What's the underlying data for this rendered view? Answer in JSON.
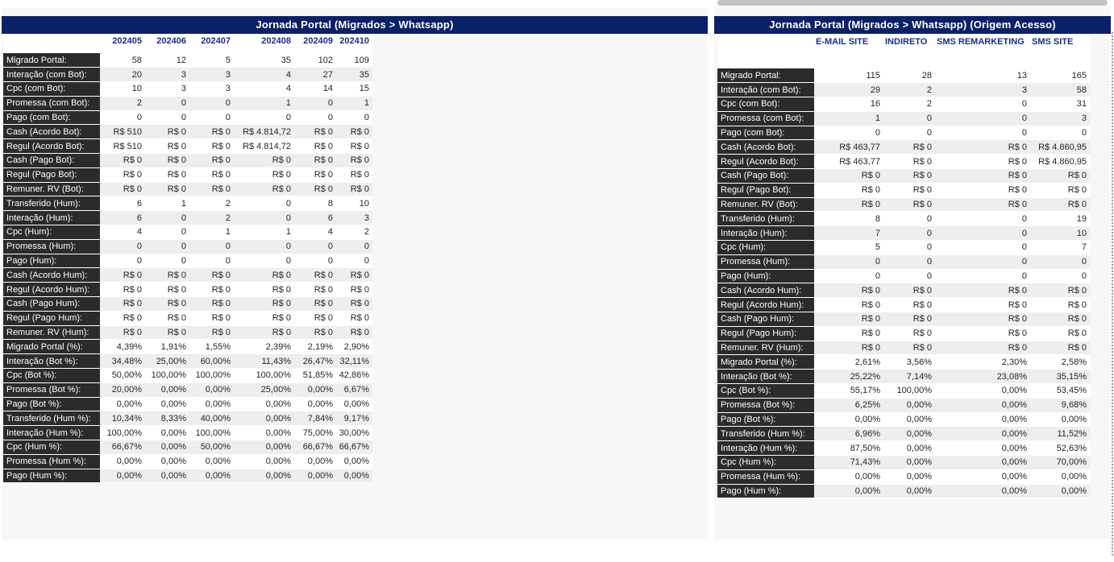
{
  "left": {
    "title": "Jornada Portal (Migrados > Whatsapp)",
    "columns": [
      "202405",
      "202406",
      "202407",
      "202408",
      "202409",
      "202410"
    ],
    "rows": [
      [
        "Migrado Portal:",
        "58",
        "12",
        "5",
        "35",
        "102",
        "109"
      ],
      [
        "Interação (com Bot):",
        "20",
        "3",
        "3",
        "4",
        "27",
        "35"
      ],
      [
        "Cpc (com Bot):",
        "10",
        "3",
        "3",
        "4",
        "14",
        "15"
      ],
      [
        "Promessa (com Bot):",
        "2",
        "0",
        "0",
        "1",
        "0",
        "1"
      ],
      [
        "Pago (com Bot):",
        "0",
        "0",
        "0",
        "0",
        "0",
        "0"
      ],
      [
        "Cash (Acordo Bot):",
        "R$ 510",
        "R$ 0",
        "R$ 0",
        "R$ 4.814,72",
        "R$ 0",
        "R$ 0"
      ],
      [
        "Regul (Acordo Bot):",
        "R$ 510",
        "R$ 0",
        "R$ 0",
        "R$ 4.814,72",
        "R$ 0",
        "R$ 0"
      ],
      [
        "Cash (Pago Bot):",
        "R$ 0",
        "R$ 0",
        "R$ 0",
        "R$ 0",
        "R$ 0",
        "R$ 0"
      ],
      [
        "Regul (Pago Bot):",
        "R$ 0",
        "R$ 0",
        "R$ 0",
        "R$ 0",
        "R$ 0",
        "R$ 0"
      ],
      [
        "Remuner. RV (Bot):",
        "R$ 0",
        "R$ 0",
        "R$ 0",
        "R$ 0",
        "R$ 0",
        "R$ 0"
      ],
      [
        "Transferido (Hum):",
        "6",
        "1",
        "2",
        "0",
        "8",
        "10"
      ],
      [
        "Interação (Hum):",
        "6",
        "0",
        "2",
        "0",
        "6",
        "3"
      ],
      [
        "Cpc (Hum):",
        "4",
        "0",
        "1",
        "1",
        "4",
        "2"
      ],
      [
        "Promessa (Hum):",
        "0",
        "0",
        "0",
        "0",
        "0",
        "0"
      ],
      [
        "Pago (Hum):",
        "0",
        "0",
        "0",
        "0",
        "0",
        "0"
      ],
      [
        "Cash (Acordo Hum):",
        "R$ 0",
        "R$ 0",
        "R$ 0",
        "R$ 0",
        "R$ 0",
        "R$ 0"
      ],
      [
        "Regul (Acordo Hum):",
        "R$ 0",
        "R$ 0",
        "R$ 0",
        "R$ 0",
        "R$ 0",
        "R$ 0"
      ],
      [
        "Cash (Pago Hum):",
        "R$ 0",
        "R$ 0",
        "R$ 0",
        "R$ 0",
        "R$ 0",
        "R$ 0"
      ],
      [
        "Regul (Pago Hum):",
        "R$ 0",
        "R$ 0",
        "R$ 0",
        "R$ 0",
        "R$ 0",
        "R$ 0"
      ],
      [
        "Remuner. RV (Hum):",
        "R$ 0",
        "R$ 0",
        "R$ 0",
        "R$ 0",
        "R$ 0",
        "R$ 0"
      ],
      [
        "Migrado Portal (%):",
        "4,39%",
        "1,91%",
        "1,55%",
        "2,39%",
        "2,19%",
        "2,90%"
      ],
      [
        "Interação (Bot %):",
        "34,48%",
        "25,00%",
        "60,00%",
        "11,43%",
        "26,47%",
        "32,11%"
      ],
      [
        "Cpc (Bot %):",
        "50,00%",
        "100,00%",
        "100,00%",
        "100,00%",
        "51,85%",
        "42,86%"
      ],
      [
        "Promessa (Bot %):",
        "20,00%",
        "0,00%",
        "0,00%",
        "25,00%",
        "0,00%",
        "6,67%"
      ],
      [
        "Pago (Bot %):",
        "0,00%",
        "0,00%",
        "0,00%",
        "0,00%",
        "0,00%",
        "0,00%"
      ],
      [
        "Transferido (Hum %):",
        "10,34%",
        "8,33%",
        "40,00%",
        "0,00%",
        "7,84%",
        "9,17%"
      ],
      [
        "Interação (Hum %):",
        "100,00%",
        "0,00%",
        "100,00%",
        "0,00%",
        "75,00%",
        "30,00%"
      ],
      [
        "Cpc (Hum %):",
        "66,67%",
        "0,00%",
        "50,00%",
        "0,00%",
        "66,67%",
        "66,67%"
      ],
      [
        "Promessa (Hum %):",
        "0,00%",
        "0,00%",
        "0,00%",
        "0,00%",
        "0,00%",
        "0,00%"
      ],
      [
        "Pago (Hum %):",
        "0,00%",
        "0,00%",
        "0,00%",
        "0,00%",
        "0,00%",
        "0,00%"
      ]
    ]
  },
  "right": {
    "title": "Jornada Portal (Migrados > Whatsapp) (Origem Acesso)",
    "columns": [
      "E-MAIL SITE",
      "INDIRETO",
      "SMS REMARKETING",
      "SMS SITE"
    ],
    "rows": [
      [
        "Migrado Portal:",
        "115",
        "28",
        "13",
        "165"
      ],
      [
        "Interação (com Bot):",
        "29",
        "2",
        "3",
        "58"
      ],
      [
        "Cpc (com Bot):",
        "16",
        "2",
        "0",
        "31"
      ],
      [
        "Promessa (com Bot):",
        "1",
        "0",
        "0",
        "3"
      ],
      [
        "Pago (com Bot):",
        "0",
        "0",
        "0",
        "0"
      ],
      [
        "Cash (Acordo Bot):",
        "R$ 463,77",
        "R$ 0",
        "R$ 0",
        "R$ 4.860,95"
      ],
      [
        "Regul (Acordo Bot):",
        "R$ 463,77",
        "R$ 0",
        "R$ 0",
        "R$ 4.860,95"
      ],
      [
        "Cash (Pago Bot):",
        "R$ 0",
        "R$ 0",
        "R$ 0",
        "R$ 0"
      ],
      [
        "Regul (Pago Bot):",
        "R$ 0",
        "R$ 0",
        "R$ 0",
        "R$ 0"
      ],
      [
        "Remuner. RV (Bot):",
        "R$ 0",
        "R$ 0",
        "R$ 0",
        "R$ 0"
      ],
      [
        "Transferido (Hum):",
        "8",
        "0",
        "0",
        "19"
      ],
      [
        "Interação (Hum):",
        "7",
        "0",
        "0",
        "10"
      ],
      [
        "Cpc (Hum):",
        "5",
        "0",
        "0",
        "7"
      ],
      [
        "Promessa (Hum):",
        "0",
        "0",
        "0",
        "0"
      ],
      [
        "Pago (Hum):",
        "0",
        "0",
        "0",
        "0"
      ],
      [
        "Cash (Acordo Hum):",
        "R$ 0",
        "R$ 0",
        "R$ 0",
        "R$ 0"
      ],
      [
        "Regul (Acordo Hum):",
        "R$ 0",
        "R$ 0",
        "R$ 0",
        "R$ 0"
      ],
      [
        "Cash (Pago Hum):",
        "R$ 0",
        "R$ 0",
        "R$ 0",
        "R$ 0"
      ],
      [
        "Regul (Pago Hum):",
        "R$ 0",
        "R$ 0",
        "R$ 0",
        "R$ 0"
      ],
      [
        "Remuner. RV (Hum):",
        "R$ 0",
        "R$ 0",
        "R$ 0",
        "R$ 0"
      ],
      [
        "Migrado Portal (%):",
        "2,61%",
        "3,56%",
        "2,30%",
        "2,58%"
      ],
      [
        "Interação (Bot %):",
        "25,22%",
        "7,14%",
        "23,08%",
        "35,15%"
      ],
      [
        "Cpc (Bot %):",
        "55,17%",
        "100,00%",
        "0,00%",
        "53,45%"
      ],
      [
        "Promessa (Bot %):",
        "6,25%",
        "0,00%",
        "0,00%",
        "9,68%"
      ],
      [
        "Pago (Bot %):",
        "0,00%",
        "0,00%",
        "0,00%",
        "0,00%"
      ],
      [
        "Transferido (Hum %):",
        "6,96%",
        "0,00%",
        "0,00%",
        "11,52%"
      ],
      [
        "Interação (Hum %):",
        "87,50%",
        "0,00%",
        "0,00%",
        "52,63%"
      ],
      [
        "Cpc (Hum %):",
        "71,43%",
        "0,00%",
        "0,00%",
        "70,00%"
      ],
      [
        "Promessa (Hum %):",
        "0,00%",
        "0,00%",
        "0,00%",
        "0,00%"
      ],
      [
        "Pago (Hum %):",
        "0,00%",
        "0,00%",
        "0,00%",
        "0,00%"
      ]
    ]
  }
}
